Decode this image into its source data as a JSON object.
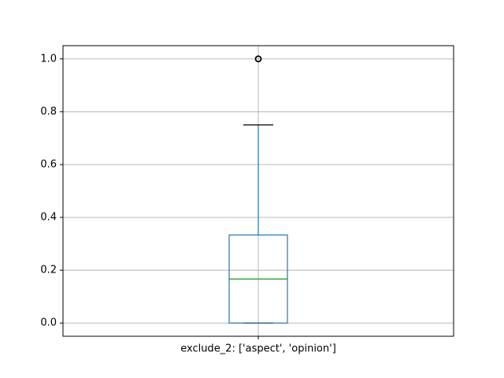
{
  "chart_data": {
    "type": "box",
    "title": "",
    "xlabel": "",
    "ylabel": "",
    "categories": [
      "exclude_2: ['aspect', 'opinion']"
    ],
    "boxes": [
      {
        "label": "exclude_2: ['aspect', 'opinion']",
        "whisker_low": 0.0,
        "q1": 0.0,
        "median": 0.1667,
        "q3": 0.3333,
        "whisker_high": 0.75,
        "outliers": [
          1.0
        ]
      }
    ],
    "ylim": [
      -0.05,
      1.05
    ],
    "yticks": [
      0.0,
      0.2,
      0.4,
      0.6,
      0.8,
      1.0
    ],
    "ytick_labels": [
      "0.0",
      "0.2",
      "0.4",
      "0.6",
      "0.8",
      "1.0"
    ],
    "grid": true,
    "legend": "none",
    "colors": {
      "box": "#1f77b4",
      "median": "#2ca02c",
      "whisker": "#1f77b4",
      "cap": "#000000",
      "outlier": "#000000",
      "grid": "#b0b0b0"
    }
  }
}
